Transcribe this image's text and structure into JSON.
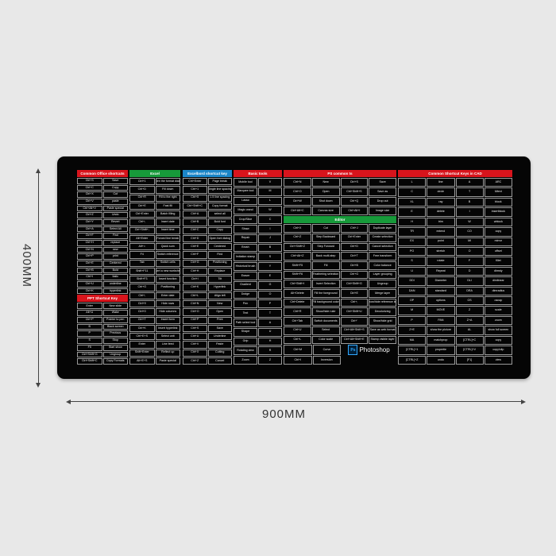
{
  "dimensions": {
    "height": "400MM",
    "width": "900MM"
  },
  "colors": {
    "red": "#d8141c",
    "green": "#179a3a",
    "blue": "#1b86c8",
    "pad": "#050505"
  },
  "office": {
    "title": "Common Office shortcuts",
    "rows": [
      [
        "Ctrl+S",
        "Save"
      ],
      [
        "Ctrl+C",
        "Copy"
      ],
      [
        "Ctrl+X",
        "Cut"
      ],
      [
        "Ctrl+V",
        "paste"
      ],
      [
        "Ctrl+Alt+V",
        "Paste special"
      ],
      [
        "Ctrl+Z",
        "Undo"
      ],
      [
        "Ctrl+Y",
        "Revert"
      ],
      [
        "Ctrl+A",
        "Select All"
      ],
      [
        "Ctrl+F",
        "Find"
      ],
      [
        "Ctrl+H",
        "replace"
      ],
      [
        "Ctrl+N",
        "new"
      ],
      [
        "Ctrl+P",
        "print"
      ],
      [
        "Ctrl+E",
        "Centered"
      ],
      [
        "Ctrl+B",
        "Bold"
      ],
      [
        "Ctrl+I",
        "Italic"
      ],
      [
        "Ctrl+U",
        "underline"
      ],
      [
        "Ctrl+K",
        "hyperlink"
      ]
    ]
  },
  "ppt": {
    "title": "PPT Shortcut Key",
    "rows": [
      [
        "Enter",
        "New slide"
      ],
      [
        "Alt+U",
        "Wake"
      ],
      [
        "Ctrl+P",
        "Pointer to pen"
      ],
      [
        "B",
        "Black screen"
      ],
      [
        "P",
        "Previous"
      ],
      [
        "S",
        "Stop"
      ],
      [
        "F5",
        "Start show"
      ],
      [
        "Ctrl+Shift+G",
        "Ungroup"
      ],
      [
        "Ctrl+Shift+C",
        "Copy Formats"
      ]
    ]
  },
  "excel": {
    "title": "Excel",
    "rows": [
      [
        "Ctrl+1",
        "Open the format dialog"
      ],
      [
        "Ctrl+D",
        "Fill down"
      ],
      [
        "Ctrl+R",
        "Fill to the right"
      ],
      [
        "Ctrl+E",
        "Fast fill"
      ],
      [
        "Ctrl+Enter",
        "Batch filling"
      ],
      [
        "Ctrl+;",
        "Insert date"
      ],
      [
        "Ctrl+Shift+;",
        "Insert time"
      ],
      [
        "Alt+Enter",
        "Forced line break"
      ],
      [
        "Alt+=",
        "Quick sum"
      ],
      [
        "F4",
        "Switch reference"
      ],
      [
        "Tab",
        "Switch cells"
      ],
      [
        "Shift+F11",
        "Insert a new worksheet"
      ],
      [
        "Shift+F3",
        "Insert function"
      ],
      [
        "Ctrl+G",
        "Positioning"
      ],
      [
        "Ctrl+;",
        "Enter date"
      ],
      [
        "Ctrl+9",
        "Hide rows"
      ],
      [
        "Ctrl+0",
        "Hide columns"
      ],
      [
        "Ctrl+T",
        "Insert form"
      ],
      [
        "Ctrl+K",
        "Insert hyperlink"
      ],
      [
        "Ctrl+E+S",
        "Select unit"
      ],
      [
        "Enter",
        "Line feed"
      ],
      [
        "Shift+Enter",
        "Reflect up"
      ],
      [
        "Alt+E+S",
        "Paste special"
      ]
    ]
  },
  "word": {
    "title": "Excelbord shortcut key",
    "rows": [
      [
        "Ctrl+Enter",
        "Page break"
      ],
      [
        "Ctrl+1",
        "Single line spacing"
      ],
      [
        "Ctrl+5",
        "1.5 line spacing"
      ],
      [
        "Ctrl+Shift+C",
        "Copy format"
      ],
      [
        "Ctrl+A",
        "select all"
      ],
      [
        "Ctrl+B",
        "Bold font"
      ],
      [
        "Ctrl+C",
        "Copy"
      ],
      [
        "Ctrl+D",
        "Open font dialog"
      ],
      [
        "Ctrl+E",
        "Centered"
      ],
      [
        "Ctrl+F",
        "Find"
      ],
      [
        "Ctrl+G",
        "Positioning"
      ],
      [
        "Ctrl+H",
        "Replace"
      ],
      [
        "Ctrl+I",
        "Tilt"
      ],
      [
        "Ctrl+K",
        "Hyperlink"
      ],
      [
        "Ctrl+L",
        "Align left"
      ],
      [
        "Ctrl+N",
        "New"
      ],
      [
        "Ctrl+O",
        "Open"
      ],
      [
        "Ctrl+P",
        "Print"
      ],
      [
        "Ctrl+S",
        "Save"
      ],
      [
        "Ctrl+U",
        "Underline"
      ],
      [
        "Ctrl+V",
        "Paste"
      ],
      [
        "Ctrl+X",
        "Cutting"
      ],
      [
        "Ctrl+Z",
        "Cancel"
      ]
    ]
  },
  "basic": {
    "title": "Basic tools",
    "rows": [
      [
        "Mobile tool",
        "V"
      ],
      [
        "Marquee tool",
        "M"
      ],
      [
        "Lasso",
        "L"
      ],
      [
        "Magic wand",
        "W"
      ],
      [
        "Crop/Slice",
        "C"
      ],
      [
        "Straw",
        "I"
      ],
      [
        "Repair",
        "J"
      ],
      [
        "Brush",
        "B"
      ],
      [
        "Imitation stamp",
        "S"
      ],
      [
        "Historical brush",
        "Y"
      ],
      [
        "Eraser",
        "E"
      ],
      [
        "Gradient",
        "G"
      ],
      [
        "Dodge",
        "O"
      ],
      [
        "Pen",
        "P"
      ],
      [
        "Text",
        "T"
      ],
      [
        "Path select tool",
        "A"
      ],
      [
        "Shape",
        "U"
      ],
      [
        "Grip",
        "H"
      ],
      [
        "Rotating view",
        "R"
      ],
      [
        "Zoom",
        "Z"
      ]
    ]
  },
  "ps": {
    "title": "PS common ts",
    "rows": [
      [
        "Ctrl+N",
        "New",
        "Ctrl+S",
        "Save"
      ],
      [
        "Ctrl+O",
        "Open",
        "Ctrl+Shift+S",
        "Save as"
      ],
      [
        "Ctrl+W",
        "Shut down",
        "Ctrl+Q",
        "Drop out"
      ],
      [
        "Ctrl+Alt+C",
        "Canvas size",
        "Ctrl+Alt+I",
        "Image size"
      ]
    ],
    "editor_title": "Editor",
    "editor_rows": [
      [
        "Ctrl+X",
        "Cut",
        "Ctrl+J",
        "Duplicate layer"
      ],
      [
        "Ctrl+Z",
        "Step Backward",
        "Ctrl+Enter",
        "Create selection"
      ],
      [
        "Ctrl+Shift+Z",
        "Step Forward",
        "Ctrl+D",
        "Cancel selection"
      ],
      [
        "Ctrl+Alt+Z",
        "Back multi-step",
        "Ctrl+T",
        "Free transform"
      ],
      [
        "Shift+F5",
        "Fill",
        "Ctrl+B",
        "Color balance"
      ],
      [
        "Shift+F6",
        "Feathering selection",
        "Ctrl+G",
        "Layer grouping"
      ],
      [
        "Ctrl+Shift+I",
        "Invert Selection",
        "Ctrl+Shift+G",
        "Ungroup"
      ],
      [
        "Alt+Delete",
        "Fill the foreground",
        "Ctrl+E",
        "Merge layer"
      ],
      [
        "Ctrl+Delete",
        "Fill background color",
        "Ctrl+;",
        "Show/hide reference line"
      ],
      [
        "Ctrl+R",
        "Show/hide ruler",
        "Ctrl+Shift+U",
        "Decolorizing"
      ],
      [
        "Ctrl+Tab",
        "Switch documents",
        "Ctrl+'",
        "Show/hide grid"
      ],
      [
        "Ctrl+U",
        "Select",
        "Ctrl+Alt+Shift+S",
        "Save as web format"
      ],
      [
        "Ctrl+L",
        "Color scale",
        "Ctrl+Alt+Shift+E",
        "Stamp visible layer"
      ],
      [
        "Ctrl+M",
        "Curve"
      ],
      [
        "Ctrl+I",
        "Inversion"
      ]
    ],
    "logo_badge": "Ps",
    "logo_text": "Photoshop"
  },
  "cad": {
    "title": "Common Shortcut Keys in CAD",
    "rows": [
      [
        "L",
        "line",
        "A",
        "ARC"
      ],
      [
        "C",
        "circle",
        "T",
        "Mtext"
      ],
      [
        "XL",
        "ray",
        "B",
        "block"
      ],
      [
        "E",
        "delete",
        "I",
        "insertblock"
      ],
      [
        "H",
        "trim",
        "W",
        "wblock"
      ],
      [
        "TR",
        "extend",
        "CO",
        "copy"
      ],
      [
        "EX",
        "point",
        "MI",
        "mirror"
      ],
      [
        "PO",
        "stretch",
        "O",
        "offset"
      ],
      [
        "S",
        "rotate",
        "F",
        "fillet"
      ],
      [
        "U",
        "Repeat",
        "D",
        "dimsty"
      ],
      [
        "DDI",
        "Diameter",
        "DLI",
        "dimlinear"
      ],
      [
        "DAN",
        "standard",
        "DRA",
        "dimradius"
      ],
      [
        "OP",
        "options",
        "OS",
        "osnap"
      ],
      [
        "M",
        "MOVE",
        "Z",
        "scale"
      ],
      [
        "P",
        "PAN",
        "Z+A",
        "zoom"
      ],
      [
        "Z+E",
        "show the picture",
        "AL",
        "show full screen"
      ],
      [
        "MA",
        "matchprop",
        "[CTRL]+C",
        "copy"
      ],
      [
        "[CTRL]+1",
        "propertie",
        "[CTRL]+V",
        "copy/clip"
      ],
      [
        "[CTRL]+Z",
        "undo",
        "[F1]",
        "view"
      ]
    ]
  }
}
